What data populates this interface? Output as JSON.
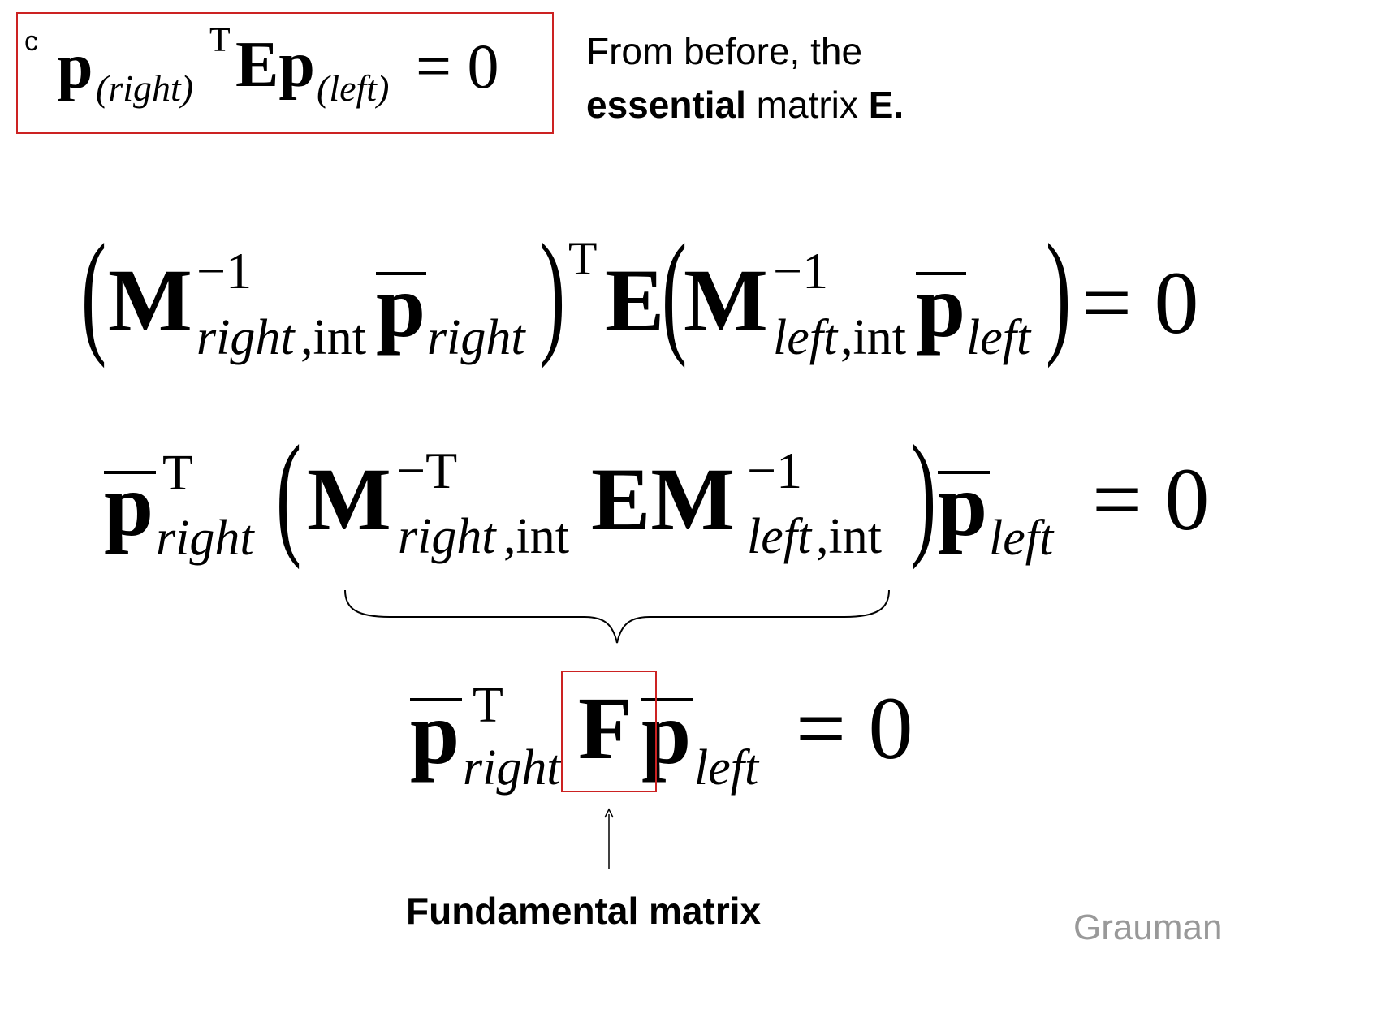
{
  "top_equation": {
    "prefix": "c",
    "p": "p",
    "sub_right": "(right)",
    "sup_t": "T",
    "ep": "Ep",
    "sub_left": "(left)",
    "equals_zero": "= 0"
  },
  "note": {
    "line1": "From before, the",
    "bold_word": "essential",
    "middle": " matrix ",
    "bold_e": "E."
  },
  "eq1": {
    "lparen": "(",
    "M": "M",
    "sup_inv": "−1",
    "sub_right_int": "right",
    "sub_int": ",int",
    "p": "p",
    "sub_right": "right",
    "rparen": ")",
    "sup_t": "T",
    "E": "E",
    "lparen2": "(",
    "M2": "M",
    "sup_inv2": "−1",
    "sub_left_int": "left",
    "sub_int2": ",int",
    "p2": "p",
    "sub_left": "left",
    "rparen2": ")",
    "equals_zero": "= 0"
  },
  "eq2": {
    "p": "p",
    "sup_t": "T",
    "sub_right": "right",
    "lparen": "(",
    "M": "M",
    "sup_neg_t": "−T",
    "sub_right_int": "right",
    "sub_int": ",int",
    "EM": "EM",
    "sup_inv": "−1",
    "sub_left_int": "left",
    "sub_int2": ",int",
    "rparen": ")",
    "p2": "p",
    "sub_left": "left",
    "equals_zero": "= 0"
  },
  "eq3": {
    "p": "p",
    "sup_t": "T",
    "sub_right": "right",
    "F": "F",
    "p2": "p",
    "sub_left": "left",
    "equals_zero": "= 0"
  },
  "label": "Fundamental matrix",
  "credit": "Grauman",
  "colors": {
    "highlight_box": "#cc2222",
    "credit": "#999999"
  }
}
